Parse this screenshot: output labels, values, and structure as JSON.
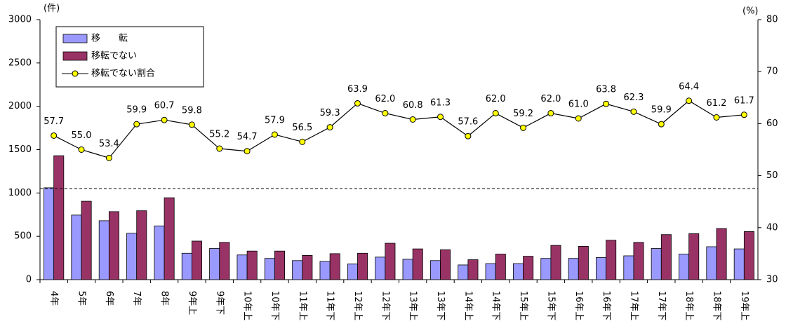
{
  "chart_data": {
    "type": "bar",
    "y_unit": "(件)",
    "y2_unit": "(%)",
    "categories": [
      "4年",
      "5年",
      "6年",
      "7年",
      "8年",
      "9年上",
      "9年下",
      "10年上",
      "10年下",
      "11年上",
      "11年下",
      "12年上",
      "12年下",
      "13年上",
      "13年下",
      "14年上",
      "14年下",
      "15年上",
      "15年下",
      "16年上",
      "16年下",
      "17年上",
      "17年下",
      "18年上",
      "18年下",
      "19年上"
    ],
    "series": [
      {
        "name": "移　　転",
        "color": "#9999ff",
        "values": [
          1060,
          745,
          680,
          535,
          620,
          305,
          360,
          285,
          245,
          220,
          210,
          180,
          260,
          235,
          220,
          170,
          185,
          185,
          245,
          245,
          255,
          275,
          360,
          295,
          380,
          355
        ]
      },
      {
        "name": "移転でない",
        "color": "#993366",
        "values": [
          1430,
          905,
          785,
          795,
          945,
          445,
          430,
          330,
          330,
          280,
          300,
          305,
          420,
          355,
          345,
          230,
          295,
          270,
          395,
          385,
          455,
          430,
          520,
          530,
          590,
          555
        ]
      },
      {
        "name": "移転でない割合",
        "type": "line",
        "axis": "y2",
        "color": "#000000",
        "marker_color": "#ffff00",
        "values": [
          57.7,
          55.0,
          53.4,
          59.9,
          60.7,
          59.8,
          55.2,
          54.7,
          57.9,
          56.5,
          59.3,
          63.9,
          62.0,
          60.8,
          61.3,
          57.6,
          62.0,
          59.2,
          62.0,
          61.0,
          63.8,
          62.3,
          59.9,
          64.4,
          61.2,
          61.7
        ],
        "value_labels": [
          "57.7",
          "55.0",
          "53.4",
          "59.9",
          "60.7",
          "59.8",
          "55.2",
          "54.7",
          "57.9",
          "56.5",
          "59.3",
          "63.9",
          "62.0",
          "60.8",
          "61.3",
          "57.6",
          "62.0",
          "59.2",
          "62.0",
          "61.0",
          "63.8",
          "62.3",
          "59.9",
          "64.4",
          "61.2",
          "61.7"
        ]
      }
    ],
    "reference_line": 1050,
    "ylim": [
      0,
      3000
    ],
    "yticks": [
      0,
      500,
      1000,
      1500,
      2000,
      2500,
      3000
    ],
    "y2lim": [
      30,
      80
    ],
    "y2ticks": [
      30,
      40,
      50,
      60,
      70,
      80
    ],
    "legend": "upper left"
  }
}
